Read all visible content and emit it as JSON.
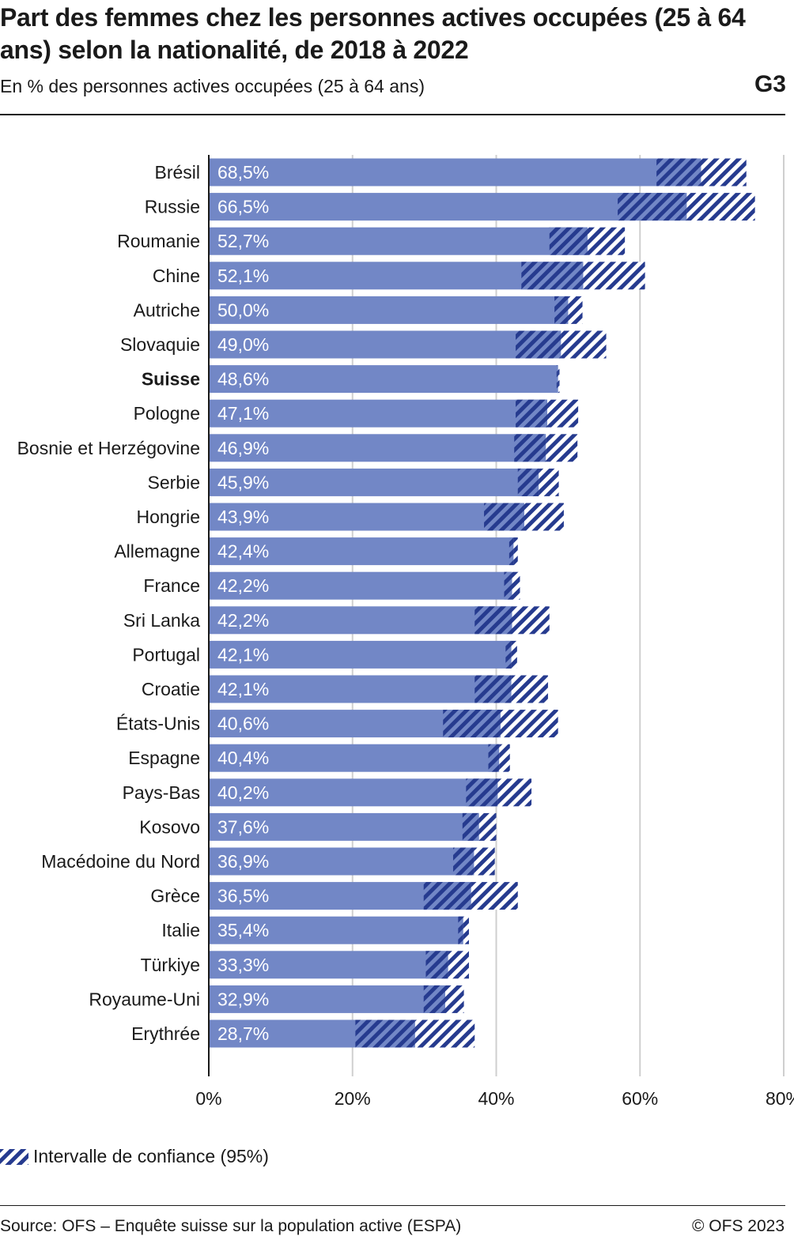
{
  "header": {
    "title": "Part des femmes chez les personnes actives occupées (25 à 64 ans) selon la nationalité, de 2018 à 2022",
    "subtitle": "En % des personnes actives occupées (25 à 64 ans)",
    "graphic_number": "G3"
  },
  "legend": {
    "label": "Intervalle de confiance (95%)"
  },
  "footer": {
    "source": "Source: OFS – Enquête suisse sur la population active (ESPA)",
    "copyright": "© OFS 2023"
  },
  "colors": {
    "bar": "#7287c6",
    "hatch": "#263b8f",
    "grid": "#cfcfcf",
    "axis": "#1a1a1a"
  },
  "chart_data": {
    "type": "bar",
    "orientation": "horizontal",
    "xlim": [
      0,
      80
    ],
    "xticks": [
      0,
      20,
      40,
      60,
      80
    ],
    "xtick_labels": [
      "0%",
      "20%",
      "40%",
      "60%",
      "80%"
    ],
    "grid": true,
    "highlighted_category": "Suisse",
    "categories": [
      "Brésil",
      "Russie",
      "Roumanie",
      "Chine",
      "Autriche",
      "Slovaquie",
      "Suisse",
      "Pologne",
      "Bosnie et Herzégovine",
      "Serbie",
      "Hongrie",
      "Allemagne",
      "France",
      "Sri Lanka",
      "Portugal",
      "Croatie",
      "États-Unis",
      "Espagne",
      "Pays-Bas",
      "Kosovo",
      "Macédoine du Nord",
      "Grèce",
      "Italie",
      "Türkiye",
      "Royaume-Uni",
      "Erythrée"
    ],
    "values": [
      68.5,
      66.5,
      52.7,
      52.1,
      50.0,
      49.0,
      48.6,
      47.1,
      46.9,
      45.9,
      43.9,
      42.4,
      42.2,
      42.2,
      42.1,
      42.1,
      40.6,
      40.4,
      40.2,
      37.6,
      36.9,
      36.5,
      35.4,
      33.3,
      32.9,
      28.7
    ],
    "value_labels": [
      "68,5%",
      "66,5%",
      "52,7%",
      "52,1%",
      "50,0%",
      "49,0%",
      "48,6%",
      "47,1%",
      "46,9%",
      "45,9%",
      "43,9%",
      "42,4%",
      "42,2%",
      "42,2%",
      "42,1%",
      "42,1%",
      "40,6%",
      "40,4%",
      "40,2%",
      "37,6%",
      "36,9%",
      "36,5%",
      "35,4%",
      "33,3%",
      "32,9%",
      "28,7%"
    ],
    "ci_low": [
      62.3,
      56.9,
      47.4,
      43.5,
      48.1,
      42.7,
      48.4,
      42.7,
      42.5,
      43.0,
      38.3,
      41.8,
      41.1,
      37.0,
      41.3,
      37.0,
      32.6,
      38.9,
      35.8,
      35.3,
      34.0,
      29.9,
      34.7,
      30.2,
      29.9,
      20.4
    ],
    "ci_high": [
      74.8,
      76.0,
      57.9,
      60.7,
      52.0,
      55.3,
      48.8,
      51.4,
      51.3,
      48.7,
      49.4,
      43.0,
      43.3,
      47.4,
      42.9,
      47.2,
      48.6,
      41.9,
      44.9,
      40.0,
      39.8,
      43.0,
      36.2,
      36.2,
      35.5,
      37.0
    ]
  }
}
